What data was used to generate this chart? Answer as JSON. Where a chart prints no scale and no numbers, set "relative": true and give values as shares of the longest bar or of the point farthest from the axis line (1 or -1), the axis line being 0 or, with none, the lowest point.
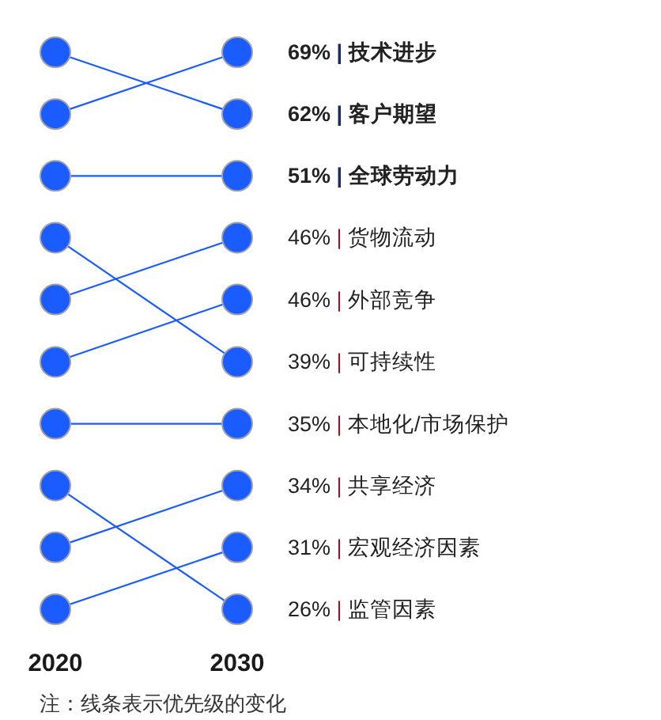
{
  "chart_data": {
    "type": "line",
    "relative": true,
    "categories": [
      "2020",
      "2030"
    ],
    "marker": "circle",
    "tick_labels": "x",
    "series": [
      {
        "name": "69% | 技术进步",
        "color": "#1a5cff",
        "values": [
          0.889,
          1
        ]
      },
      {
        "name": "62% | 客户期望",
        "color": "#1a5cff",
        "values": [
          1,
          0.889
        ]
      },
      {
        "name": "51% | 全球劳动力",
        "color": "#1a5cff",
        "values": [
          0.778,
          0.778
        ]
      },
      {
        "name": "46% | 货物流动",
        "color": "#1a5cff",
        "values": [
          0.556,
          0.667
        ]
      },
      {
        "name": "46% | 外部竞争",
        "color": "#1a5cff",
        "values": [
          0.444,
          0.556
        ]
      },
      {
        "name": "39% | 可持续性",
        "color": "#1a5cff",
        "values": [
          0.667,
          0.444
        ]
      },
      {
        "name": "35% | 本地化/市场保护",
        "color": "#1a5cff",
        "values": [
          0.333,
          0.333
        ]
      },
      {
        "name": "34% | 共享经济",
        "color": "#1a5cff",
        "values": [
          0.111,
          0.222
        ]
      },
      {
        "name": "31% | 宏观经济因素",
        "color": "#1a5cff",
        "values": [
          0,
          0.111
        ]
      },
      {
        "name": "26% | 监管因素",
        "color": "#1a5cff",
        "values": [
          0.222,
          0
        ]
      }
    ],
    "annotations": [
      "注：线条表示优先级的变化"
    ]
  }
}
